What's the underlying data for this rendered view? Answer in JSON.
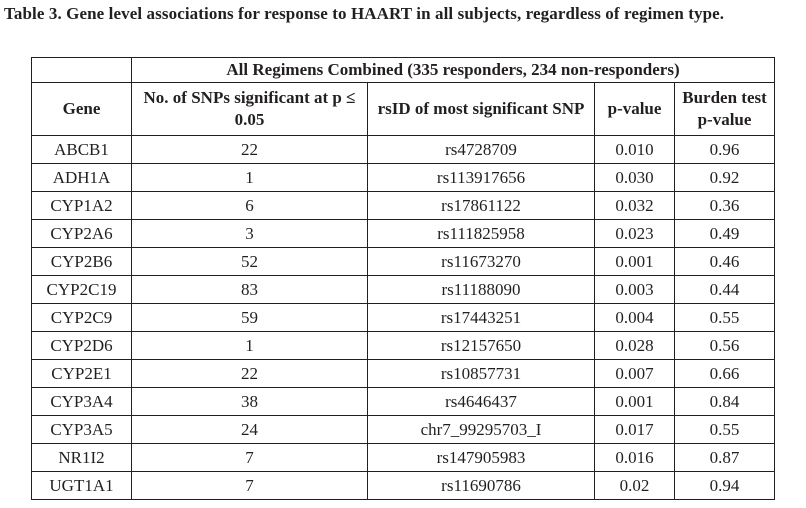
{
  "caption": "Table 3. Gene level associations for response to HAART in all subjects, regardless of regimen type.",
  "table": {
    "group_header": "All Regimens Combined (335 responders, 234 non-responders)",
    "columns": [
      "Gene",
      "No. of SNPs significant at p ≤ 0.05",
      "rsID of most significant SNP",
      "p-value",
      "Burden test p-value"
    ],
    "rows": [
      [
        "ABCB1",
        "22",
        "rs4728709",
        "0.010",
        "0.96"
      ],
      [
        "ADH1A",
        "1",
        "rs113917656",
        "0.030",
        "0.92"
      ],
      [
        "CYP1A2",
        "6",
        "rs17861122",
        "0.032",
        "0.36"
      ],
      [
        "CYP2A6",
        "3",
        "rs111825958",
        "0.023",
        "0.49"
      ],
      [
        "CYP2B6",
        "52",
        "rs11673270",
        "0.001",
        "0.46"
      ],
      [
        "CYP2C19",
        "83",
        "rs11188090",
        "0.003",
        "0.44"
      ],
      [
        "CYP2C9",
        "59",
        "rs17443251",
        "0.004",
        "0.55"
      ],
      [
        "CYP2D6",
        "1",
        "rs12157650",
        "0.028",
        "0.56"
      ],
      [
        "CYP2E1",
        "22",
        "rs10857731",
        "0.007",
        "0.66"
      ],
      [
        "CYP3A4",
        "38",
        "rs4646437",
        "0.001",
        "0.84"
      ],
      [
        "CYP3A5",
        "24",
        "chr7_99295703_I",
        "0.017",
        "0.55"
      ],
      [
        "NR1I2",
        "7",
        "rs147905983",
        "0.016",
        "0.87"
      ],
      [
        "UGT1A1",
        "7",
        "rs11690786",
        "0.02",
        "0.94"
      ]
    ]
  }
}
